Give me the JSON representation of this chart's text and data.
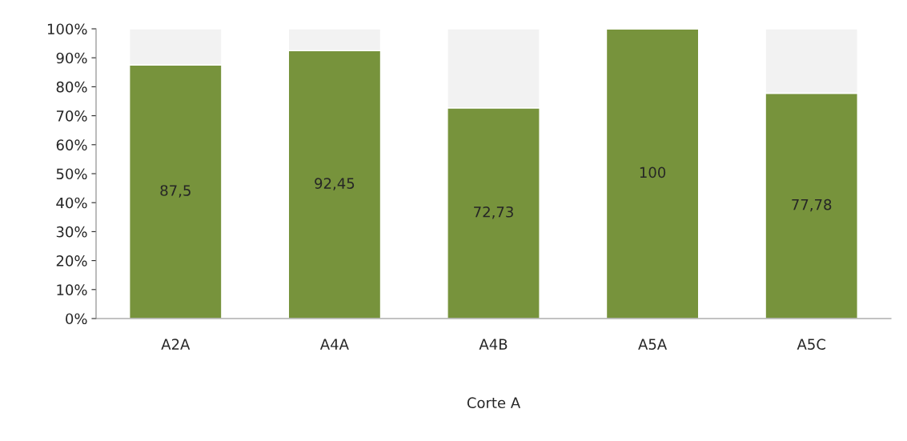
{
  "chart_data": {
    "type": "bar",
    "stacked": true,
    "categories": [
      "A2A",
      "A4A",
      "A4B",
      "A5A",
      "A5C"
    ],
    "xlabel": "Corte A",
    "series": [
      {
        "color": "#77933c",
        "values": [
          87.5,
          92.45,
          72.73,
          100,
          77.78
        ],
        "value_labels": [
          "87,5",
          "92,45",
          "72,73",
          "100",
          "77,78"
        ]
      },
      {
        "color": "#f2f2f2",
        "values": [
          12.5,
          7.55,
          27.27,
          0,
          22.22
        ]
      }
    ],
    "ylim": [
      0,
      100
    ],
    "yticks": [
      {
        "value": 0,
        "label": "0%"
      },
      {
        "value": 10,
        "label": "10%"
      },
      {
        "value": 20,
        "label": "20%"
      },
      {
        "value": 30,
        "label": "30%"
      },
      {
        "value": 40,
        "label": "40%"
      },
      {
        "value": 50,
        "label": "50%"
      },
      {
        "value": 60,
        "label": "60%"
      },
      {
        "value": 70,
        "label": "70%"
      },
      {
        "value": 80,
        "label": "80%"
      },
      {
        "value": 90,
        "label": "90%"
      },
      {
        "value": 100,
        "label": "100%"
      }
    ],
    "grid": false
  }
}
